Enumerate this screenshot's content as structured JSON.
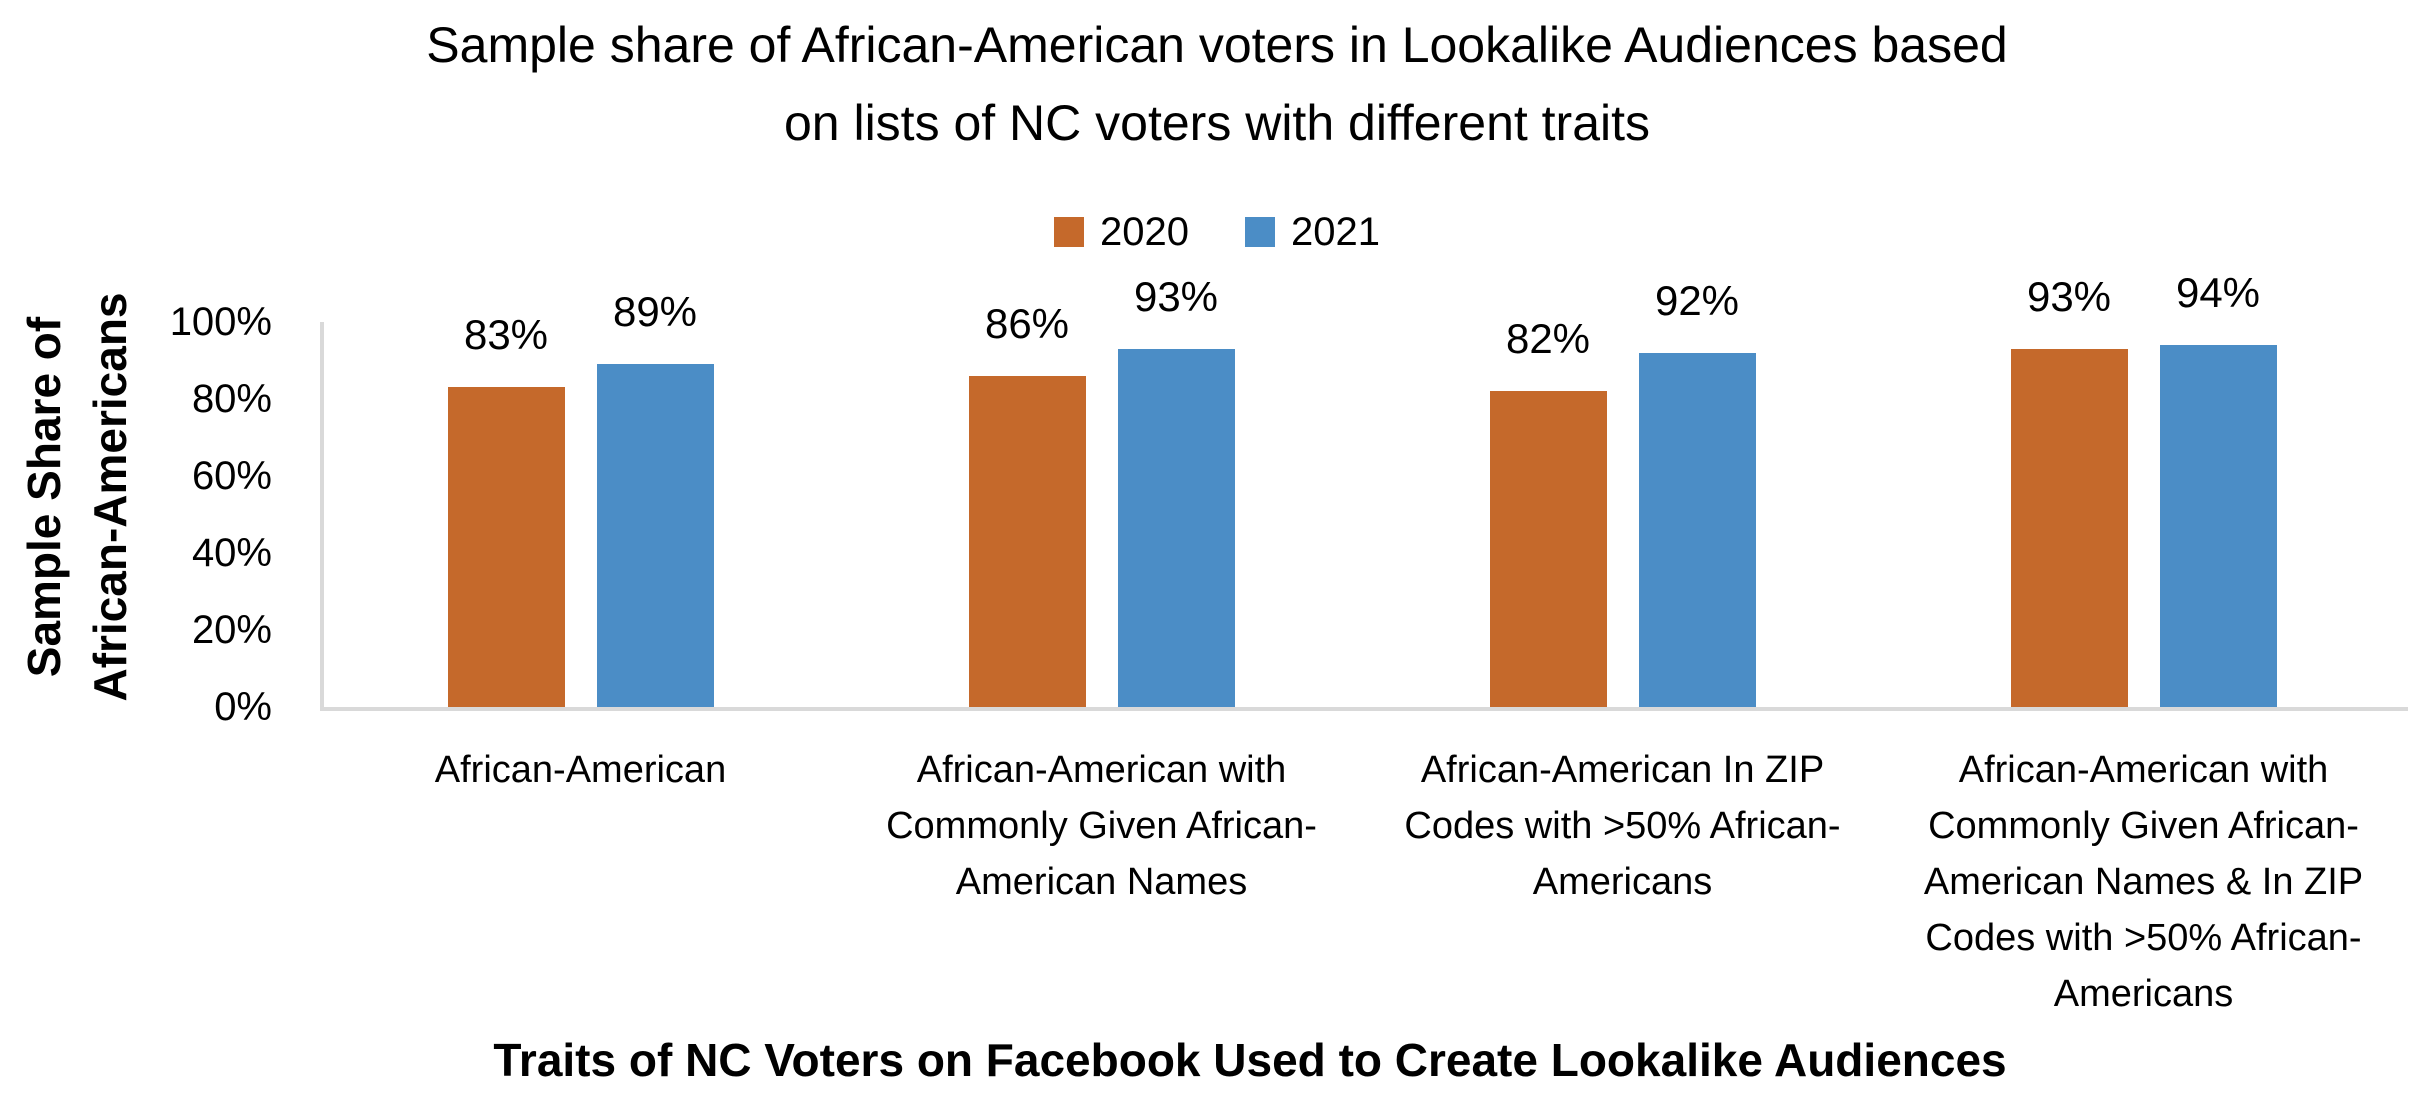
{
  "colors": {
    "series_2020": "#C5692B",
    "series_2021": "#4B8DC6",
    "axis_line": "#D9D9D9",
    "text": "#000000"
  },
  "chart_data": {
    "type": "bar",
    "title": "Sample share of African-American voters in Lookalike Audiences based on lists of NC voters with different traits",
    "title_lines": [
      "Sample share of African-American voters in Lookalike Audiences based",
      "on lists of NC voters with different traits"
    ],
    "xlabel": "Traits of NC Voters on Facebook Used to Create Lookalike Audiences",
    "ylabel": "Sample Share of African-Americans",
    "ylabel_lines": [
      "Sample Share of",
      "African-Americans"
    ],
    "ylim": [
      0,
      100
    ],
    "ytick_labels": [
      "0%",
      "20%",
      "40%",
      "60%",
      "80%",
      "100%"
    ],
    "grid": false,
    "legend_position": "top",
    "categories": [
      "African-American",
      "African-American with Commonly Given African-American Names",
      "African-American In ZIP Codes with >50% African-Americans",
      "African-American with Commonly Given African-American Names & In ZIP Codes with >50% African-Americans"
    ],
    "category_lines": [
      [
        "African-American"
      ],
      [
        "African-American with",
        "Commonly Given African-",
        "American Names"
      ],
      [
        "African-American In ZIP",
        "Codes with >50% African-",
        "Americans"
      ],
      [
        "African-American with",
        "Commonly Given African-",
        "American Names & In ZIP",
        "Codes with >50% African-",
        "Americans"
      ]
    ],
    "series": [
      {
        "name": "2020",
        "color": "#C5692B",
        "values": [
          83,
          86,
          82,
          93
        ]
      },
      {
        "name": "2021",
        "color": "#4B8DC6",
        "values": [
          89,
          93,
          92,
          94
        ]
      }
    ],
    "value_label_format": "{v}%"
  }
}
